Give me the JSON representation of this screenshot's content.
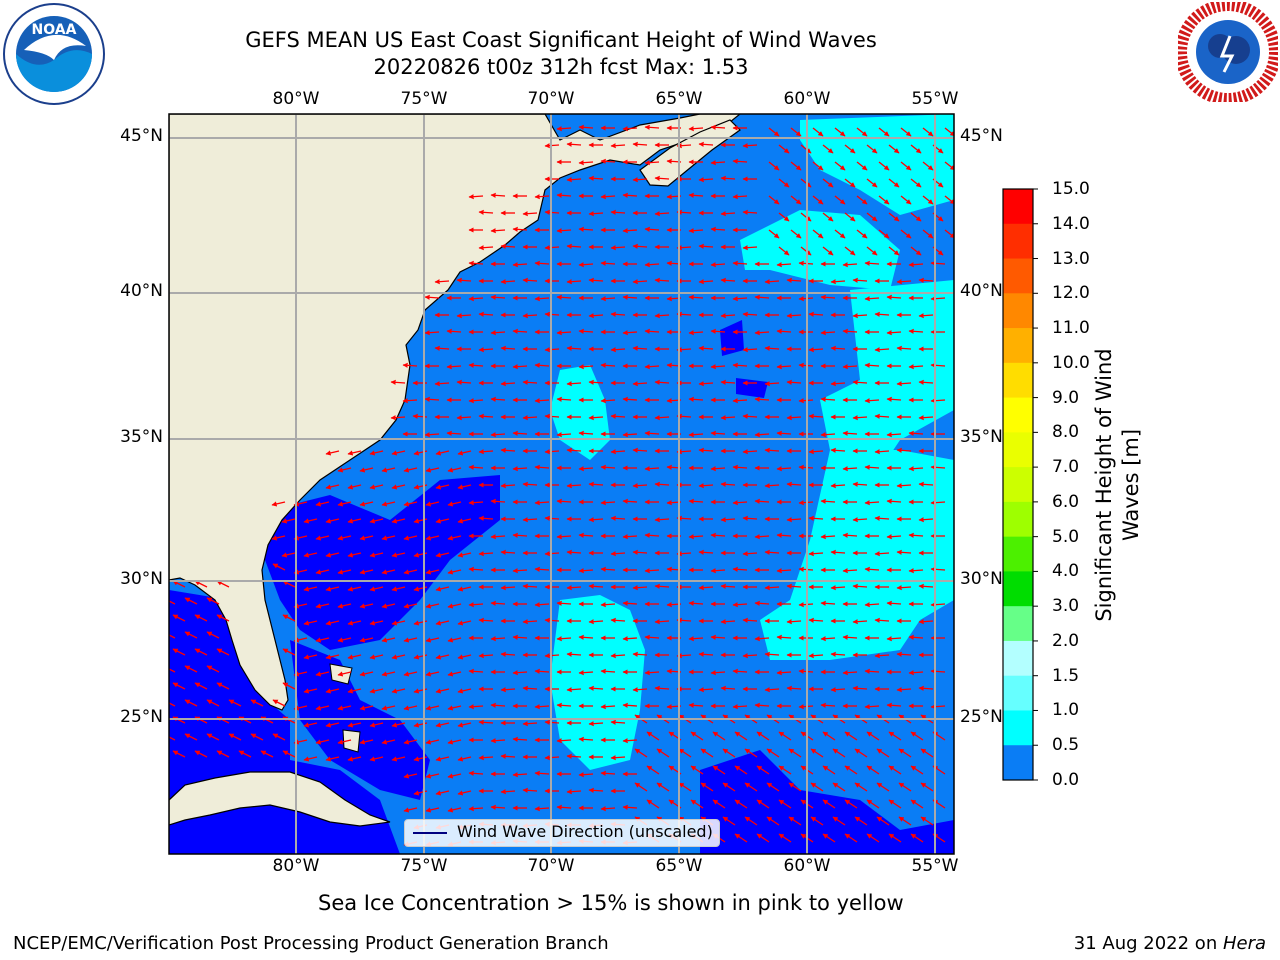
{
  "header": {
    "title_line1": "GEFS MEAN US East Coast Significant Height of Wind Waves",
    "title_line2": "20220826 t00z 312h fcst   Max: 1.53"
  },
  "logos": {
    "left": {
      "name": "NOAA",
      "ring_text": "NATIONAL OCEANIC AND ATMOSPHERIC ADMINISTRATION · U.S. DEPARTMENT OF COMMERCE"
    },
    "right": {
      "name": "NATIONAL WEATHER SERVICE"
    }
  },
  "map": {
    "lon_labels": [
      "80°W",
      "75°W",
      "70°W",
      "65°W",
      "60°W",
      "55°W"
    ],
    "lat_labels": [
      "45°N",
      "40°N",
      "35°N",
      "30°N",
      "25°N"
    ],
    "legend_label": "Wind Wave Direction (unscaled)",
    "colors": {
      "land": "#efedd9",
      "wave_0_0.5": "#0000ff",
      "wave_0.5_1.0": "#0a7df5",
      "wave_1.0_1.5": "#00ffff",
      "arrow": "#ff0000",
      "grid": "#aaaaaa"
    }
  },
  "colorbar": {
    "title_line1": "Significant Height of Wind",
    "title_line2": "Waves [m]",
    "ticks": [
      "15.0",
      "14.0",
      "13.0",
      "12.0",
      "11.0",
      "10.0",
      "9.0",
      "8.0",
      "7.0",
      "6.0",
      "5.0",
      "4.0",
      "3.0",
      "2.0",
      "1.5",
      "1.0",
      "0.5",
      "0.0"
    ],
    "colors": [
      "#ff0000",
      "#ff2e00",
      "#ff5a00",
      "#ff8800",
      "#ffb000",
      "#ffdd00",
      "#ffff00",
      "#eaff00",
      "#ccff00",
      "#9eff00",
      "#4cf000",
      "#00dd00",
      "#66ff88",
      "#b3ffff",
      "#66ffff",
      "#00ffff",
      "#0a7df5",
      "#0000ff"
    ]
  },
  "subtitle": "Sea Ice Concentration > 15% is shown in pink to yellow",
  "footer": {
    "left": "NCEP/EMC/Verification Post Processing Product Generation Branch",
    "right_date": "31 Aug 2022 on ",
    "right_host": "Hera"
  }
}
